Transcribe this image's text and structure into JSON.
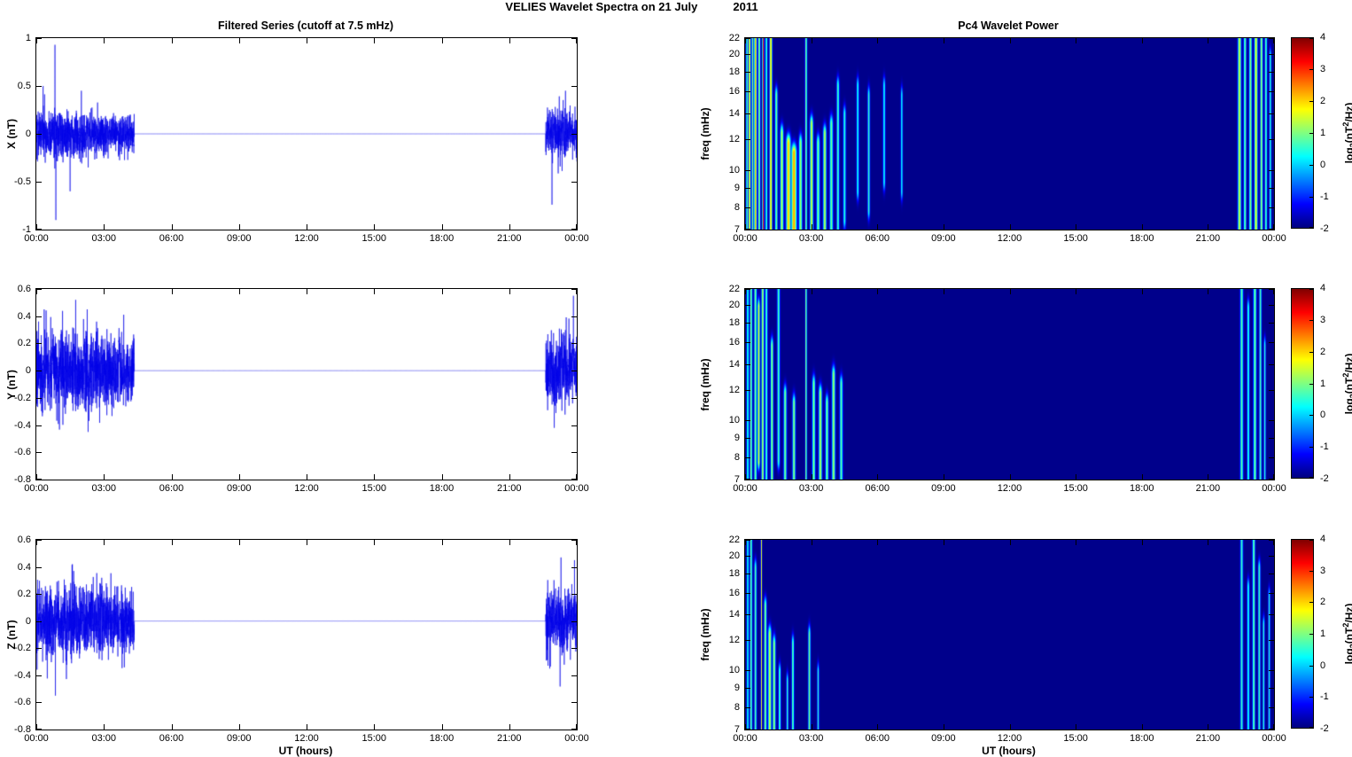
{
  "figure_title": {
    "main": "VELIES Wavelet Spectra on 21 July",
    "year": "2011"
  },
  "time_axis": {
    "tick_labels": [
      "00:00",
      "03:00",
      "06:00",
      "09:00",
      "12:00",
      "15:00",
      "18:00",
      "21:00",
      "00:00"
    ],
    "label": "UT (hours)",
    "range_hours": [
      0,
      24
    ]
  },
  "left_column": {
    "title": "Filtered Series (cutoff at 7.5 mHz)"
  },
  "right_column": {
    "title": "Pc4 Wavelet Power",
    "freq_axis_label": "freq (mHz)",
    "colorbar": {
      "tick_labels": [
        "4",
        "3",
        "2",
        "1",
        "0",
        "-1",
        "-2"
      ],
      "range": [
        -2,
        4
      ],
      "label_parts": {
        "pre": "log",
        "sub": "2",
        "mid": "(nT",
        "sup": "2",
        "post": "/Hz)"
      },
      "colormap": "jet"
    }
  },
  "colors": {
    "series_line": "#0000E8",
    "spectrogram_background": "#000090",
    "axis": "#000000",
    "background": "#FFFFFF"
  },
  "chart_data": [
    {
      "id": "x-filtered",
      "type": "line",
      "title": "Filtered Series (cutoff at 7.5 mHz)",
      "ylabel": "X (nT)",
      "xlabel": "",
      "ylim": [
        -1,
        1
      ],
      "yticks": [
        1,
        0.5,
        0,
        -0.5,
        -1
      ],
      "xlim_hours": [
        0,
        24
      ],
      "xticks": [
        "00:00",
        "03:00",
        "06:00",
        "09:00",
        "12:00",
        "15:00",
        "18:00",
        "21:00",
        "00:00"
      ],
      "signal": {
        "seed": 101,
        "points": 6000,
        "segments": [
          {
            "start": 0,
            "end": 4.35,
            "amp_start": 0.13,
            "amp_end": 0.1
          },
          {
            "start": 4.35,
            "end": 22.62,
            "amp_start": 0,
            "amp_end": 0
          },
          {
            "start": 22.62,
            "end": 24,
            "amp_start": 0.12,
            "amp_end": 0.12
          }
        ],
        "spikes": [
          {
            "t": 0.3,
            "value": 0.5
          },
          {
            "t": 0.83,
            "value": 0.93
          },
          {
            "t": 0.87,
            "value": -0.9
          },
          {
            "t": 1.5,
            "value": -0.6
          },
          {
            "t": 2.0,
            "value": 0.45
          },
          {
            "t": 22.9,
            "value": -0.74
          },
          {
            "t": 23.5,
            "value": 0.45
          }
        ]
      }
    },
    {
      "id": "y-filtered",
      "type": "line",
      "title": "",
      "ylabel": "Y (nT)",
      "xlabel": "",
      "ylim": [
        -0.8,
        0.6
      ],
      "yticks": [
        0.6,
        0.4,
        0.2,
        0,
        -0.2,
        -0.4,
        -0.6,
        -0.8
      ],
      "xlim_hours": [
        0,
        24
      ],
      "xticks": [
        "00:00",
        "03:00",
        "06:00",
        "09:00",
        "12:00",
        "15:00",
        "18:00",
        "21:00",
        "00:00"
      ],
      "signal": {
        "seed": 202,
        "points": 6000,
        "segments": [
          {
            "start": 0,
            "end": 4.35,
            "amp_start": 0.15,
            "amp_end": 0.12
          },
          {
            "start": 4.35,
            "end": 22.62,
            "amp_start": 0,
            "amp_end": 0
          },
          {
            "start": 22.62,
            "end": 24,
            "amp_start": 0.13,
            "amp_end": 0.13
          }
        ],
        "spikes": [
          {
            "t": 0.35,
            "value": 0.45
          },
          {
            "t": 1.75,
            "value": 0.52
          },
          {
            "t": 2.3,
            "value": -0.45
          },
          {
            "t": 23.0,
            "value": -0.42
          },
          {
            "t": 23.85,
            "value": 0.55
          }
        ]
      }
    },
    {
      "id": "z-filtered",
      "type": "line",
      "title": "",
      "ylabel": "Z (nT)",
      "xlabel": "UT (hours)",
      "ylim": [
        -0.8,
        0.6
      ],
      "yticks": [
        0.6,
        0.4,
        0.2,
        0,
        -0.2,
        -0.4,
        -0.6,
        -0.8
      ],
      "xlim_hours": [
        0,
        24
      ],
      "xticks": [
        "00:00",
        "03:00",
        "06:00",
        "09:00",
        "12:00",
        "15:00",
        "18:00",
        "21:00",
        "00:00"
      ],
      "signal": {
        "seed": 303,
        "points": 6000,
        "segments": [
          {
            "start": 0,
            "end": 4.35,
            "amp_start": 0.13,
            "amp_end": 0.11
          },
          {
            "start": 4.35,
            "end": 22.62,
            "amp_start": 0,
            "amp_end": 0
          },
          {
            "start": 22.62,
            "end": 24,
            "amp_start": 0.12,
            "amp_end": 0.12
          }
        ],
        "spikes": [
          {
            "t": 0.85,
            "value": -0.55
          },
          {
            "t": 1.6,
            "value": 0.42
          },
          {
            "t": 22.8,
            "value": -0.35
          },
          {
            "t": 23.3,
            "value": 0.47
          },
          {
            "t": 23.9,
            "value": 0.45
          }
        ]
      }
    },
    {
      "id": "x-wavelet",
      "type": "heatmap",
      "title": "Pc4 Wavelet Power",
      "ylabel": "freq (mHz)",
      "xlabel": "",
      "yscale": "log",
      "ylim": [
        7,
        22
      ],
      "yticks": [
        22,
        20,
        18,
        16,
        14,
        12,
        10,
        9,
        8,
        7
      ],
      "xlim_hours": [
        0,
        24
      ],
      "xticks": [
        "00:00",
        "03:00",
        "06:00",
        "09:00",
        "12:00",
        "15:00",
        "18:00",
        "21:00",
        "00:00"
      ],
      "clim": [
        -2,
        4
      ],
      "colorbar_label": "log2(nT^2/Hz)",
      "background_value": -2,
      "streaks": [
        [
          0.07,
          0.03,
          0,
          1,
          0.8
        ],
        [
          0.18,
          0.035,
          0,
          1,
          1.9
        ],
        [
          0.32,
          0.03,
          0,
          1,
          1.0
        ],
        [
          0.45,
          0.04,
          0,
          1,
          2.2
        ],
        [
          0.62,
          0.035,
          0,
          1,
          1.2
        ],
        [
          0.8,
          0.025,
          0,
          1,
          3.3
        ],
        [
          0.95,
          0.03,
          0,
          1,
          0.8
        ],
        [
          1.15,
          0.04,
          0,
          1,
          2.0
        ],
        [
          1.4,
          0.04,
          0.3,
          1,
          1.0
        ],
        [
          1.65,
          0.05,
          0.5,
          1,
          1.4
        ],
        [
          1.95,
          0.07,
          0.55,
          1,
          2.1
        ],
        [
          2.2,
          0.08,
          0.6,
          1,
          2.3
        ],
        [
          2.5,
          0.05,
          0.55,
          1,
          1.2
        ],
        [
          2.75,
          0.03,
          0,
          1,
          1.1
        ],
        [
          3.0,
          0.05,
          0.45,
          1,
          1.5
        ],
        [
          3.3,
          0.05,
          0.55,
          1,
          1.0
        ],
        [
          3.6,
          0.05,
          0.5,
          1,
          1.4
        ],
        [
          3.9,
          0.05,
          0.45,
          1,
          0.9
        ],
        [
          4.2,
          0.04,
          0.25,
          1,
          0.7
        ],
        [
          4.5,
          0.04,
          0.4,
          0.95,
          0.5
        ],
        [
          5.1,
          0.035,
          0.25,
          0.8,
          0.45
        ],
        [
          5.6,
          0.035,
          0.3,
          0.9,
          0.55
        ],
        [
          6.3,
          0.035,
          0.25,
          0.75,
          0.35
        ],
        [
          7.1,
          0.03,
          0.3,
          0.8,
          0.3
        ],
        [
          22.45,
          0.05,
          0,
          1,
          1.5
        ],
        [
          22.7,
          0.04,
          0,
          1,
          0.9
        ],
        [
          22.95,
          0.04,
          0,
          1,
          1.1
        ],
        [
          23.2,
          0.05,
          0,
          1,
          1.7
        ],
        [
          23.45,
          0.04,
          0,
          1,
          1.2
        ],
        [
          23.65,
          0.035,
          0,
          1,
          0.8
        ],
        [
          23.85,
          0.03,
          0.1,
          1,
          0.6
        ]
      ]
    },
    {
      "id": "y-wavelet",
      "type": "heatmap",
      "title": "",
      "ylabel": "freq (mHz)",
      "xlabel": "",
      "yscale": "log",
      "ylim": [
        7,
        22
      ],
      "yticks": [
        22,
        20,
        18,
        16,
        14,
        12,
        10,
        9,
        8,
        7
      ],
      "xlim_hours": [
        0,
        24
      ],
      "xticks": [
        "00:00",
        "03:00",
        "06:00",
        "09:00",
        "12:00",
        "15:00",
        "18:00",
        "21:00",
        "00:00"
      ],
      "clim": [
        -2,
        4
      ],
      "colorbar_label": "log2(nT^2/Hz)",
      "background_value": -2,
      "streaks": [
        [
          0.1,
          0.03,
          0,
          1,
          0.7
        ],
        [
          0.25,
          0.035,
          0,
          1,
          1.1
        ],
        [
          0.45,
          0.04,
          0,
          1,
          1.0
        ],
        [
          0.6,
          0.035,
          0.1,
          0.9,
          2.0
        ],
        [
          0.78,
          0.04,
          0,
          1,
          1.3
        ],
        [
          0.95,
          0.035,
          0,
          1,
          0.8
        ],
        [
          1.2,
          0.04,
          0.3,
          1,
          1.2
        ],
        [
          1.5,
          0.04,
          0,
          0.9,
          0.7
        ],
        [
          1.8,
          0.045,
          0.55,
          1,
          1.0
        ],
        [
          2.2,
          0.045,
          0.6,
          1,
          1.1
        ],
        [
          2.75,
          0.025,
          0,
          1,
          1.2
        ],
        [
          3.1,
          0.045,
          0.5,
          1,
          1.1
        ],
        [
          3.4,
          0.05,
          0.55,
          1,
          1.3
        ],
        [
          3.7,
          0.045,
          0.6,
          1,
          1.0
        ],
        [
          4.0,
          0.05,
          0.45,
          1,
          1.2
        ],
        [
          4.35,
          0.045,
          0.5,
          1,
          0.8
        ],
        [
          22.55,
          0.045,
          0,
          1,
          0.8
        ],
        [
          22.85,
          0.035,
          0.1,
          1,
          0.6
        ],
        [
          23.15,
          0.045,
          0,
          1,
          1.0
        ],
        [
          23.4,
          0.035,
          0,
          1,
          0.7
        ],
        [
          23.6,
          0.03,
          0.3,
          1,
          0.5
        ]
      ]
    },
    {
      "id": "z-wavelet",
      "type": "heatmap",
      "title": "",
      "ylabel": "freq (mHz)",
      "xlabel": "UT (hours)",
      "yscale": "log",
      "ylim": [
        7,
        22
      ],
      "yticks": [
        22,
        20,
        18,
        16,
        14,
        12,
        10,
        9,
        8,
        7
      ],
      "xlim_hours": [
        0,
        24
      ],
      "xticks": [
        "00:00",
        "03:00",
        "06:00",
        "09:00",
        "12:00",
        "15:00",
        "18:00",
        "21:00",
        "00:00"
      ],
      "clim": [
        -2,
        4
      ],
      "colorbar_label": "log2(nT^2/Hz)",
      "background_value": -2,
      "streaks": [
        [
          0.1,
          0.03,
          0,
          1,
          0.5
        ],
        [
          0.25,
          0.035,
          0,
          1,
          0.9
        ],
        [
          0.45,
          0.035,
          0.15,
          1,
          0.8
        ],
        [
          0.72,
          0.02,
          0,
          1,
          1.6
        ],
        [
          0.9,
          0.04,
          0.35,
          1,
          1.1
        ],
        [
          1.1,
          0.05,
          0.5,
          1,
          1.5
        ],
        [
          1.3,
          0.045,
          0.55,
          1,
          1.2
        ],
        [
          1.55,
          0.035,
          0.7,
          1,
          0.8
        ],
        [
          1.9,
          0.03,
          0.75,
          1,
          0.6
        ],
        [
          2.15,
          0.035,
          0.55,
          1,
          0.9
        ],
        [
          2.9,
          0.035,
          0.5,
          1,
          1.0
        ],
        [
          3.3,
          0.03,
          0.7,
          1,
          0.5
        ],
        [
          22.55,
          0.04,
          0,
          1,
          0.6
        ],
        [
          22.85,
          0.035,
          0.25,
          1,
          0.5
        ],
        [
          23.1,
          0.04,
          0,
          1,
          0.9
        ],
        [
          23.35,
          0.035,
          0.15,
          1,
          0.7
        ],
        [
          23.55,
          0.03,
          0.45,
          1,
          0.6
        ],
        [
          23.8,
          0.03,
          0.3,
          1,
          0.5
        ]
      ]
    }
  ]
}
